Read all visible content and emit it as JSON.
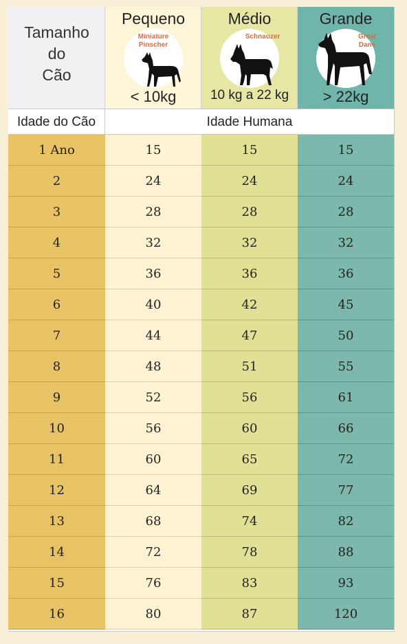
{
  "header": {
    "size_title_lines": [
      "Tamanho",
      "do",
      "Cão"
    ],
    "categories": [
      {
        "title": "Pequeno",
        "breed_lines": [
          "Miniature",
          "Pinscher"
        ],
        "weight": "< 10kg",
        "dog_icon": "doberman-silhouette-icon"
      },
      {
        "title": "Médio",
        "breed_lines": [
          "Schnauzer"
        ],
        "weight": "10 kg a 22 kg",
        "dog_icon": "schnauzer-silhouette-icon"
      },
      {
        "title": "Grande",
        "breed_lines": [
          "Great",
          "Dane"
        ],
        "weight": "> 22kg",
        "dog_icon": "great-dane-silhouette-icon"
      }
    ]
  },
  "subheader": {
    "left": "Idade do Cão",
    "right": "Idade Humana"
  },
  "rows": [
    {
      "age": "1  Ano",
      "small": "15",
      "medium": "15",
      "large": "15"
    },
    {
      "age": "2",
      "small": "24",
      "medium": "24",
      "large": "24"
    },
    {
      "age": "3",
      "small": "28",
      "medium": "28",
      "large": "28"
    },
    {
      "age": "4",
      "small": "32",
      "medium": "32",
      "large": "32"
    },
    {
      "age": "5",
      "small": "36",
      "medium": "36",
      "large": "36"
    },
    {
      "age": "6",
      "small": "40",
      "medium": "42",
      "large": "45"
    },
    {
      "age": "7",
      "small": "44",
      "medium": "47",
      "large": "50"
    },
    {
      "age": "8",
      "small": "48",
      "medium": "51",
      "large": "55"
    },
    {
      "age": "9",
      "small": "52",
      "medium": "56",
      "large": "61"
    },
    {
      "age": "10",
      "small": "56",
      "medium": "60",
      "large": "66"
    },
    {
      "age": "11",
      "small": "60",
      "medium": "65",
      "large": "72"
    },
    {
      "age": "12",
      "small": "64",
      "medium": "69",
      "large": "77"
    },
    {
      "age": "13",
      "small": "68",
      "medium": "74",
      "large": "82"
    },
    {
      "age": "14",
      "small": "72",
      "medium": "78",
      "large": "88"
    },
    {
      "age": "15",
      "small": "76",
      "medium": "83",
      "large": "93"
    },
    {
      "age": "16",
      "small": "80",
      "medium": "87",
      "large": "120"
    }
  ],
  "colors": {
    "age_column": "#e8c365",
    "small_column": "#fdf3d2",
    "medium_column": "#e1e195",
    "large_column": "#7cb8ab",
    "breed_text": "#e06a3a"
  }
}
